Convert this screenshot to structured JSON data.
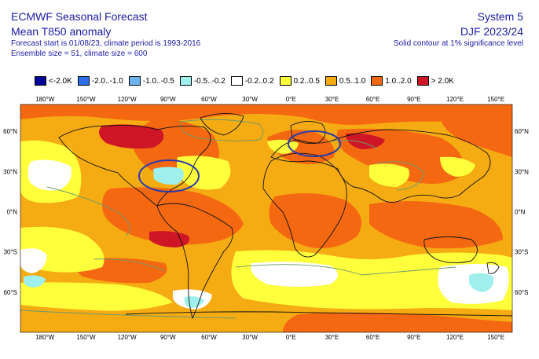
{
  "header": {
    "title": "ECMWF Seasonal Forecast",
    "subtitle": "Mean T850 anomaly",
    "forecast_info": "Forecast start is 01/08/23, climate period is 1993-2016",
    "ensemble_info": "Ensemble size = 51, climate size = 600",
    "system": "System 5",
    "season": "DJF 2023/24",
    "contour_note": "Solid contour at 1% significance level"
  },
  "legend": [
    {
      "label": "<-2.0K",
      "color": "#000099"
    },
    {
      "label": "-2.0..-1.0",
      "color": "#2f6ee6"
    },
    {
      "label": "-1.0..-0.5",
      "color": "#6cb4f0"
    },
    {
      "label": "-0.5..-0.2",
      "color": "#9ff0ec"
    },
    {
      "label": "-0.2..0.2",
      "color": "#ffffff"
    },
    {
      "label": "0.2..0.5",
      "color": "#ffff3c"
    },
    {
      "label": "0.5..1.0",
      "color": "#f5ab12"
    },
    {
      "label": "1.0..2.0",
      "color": "#f46812"
    },
    {
      "label": "> 2.0K",
      "color": "#cf1626"
    }
  ],
  "axes": {
    "lon_labels": [
      "180°W",
      "150°W",
      "120°W",
      "90°W",
      "60°W",
      "30°W",
      "0°E",
      "30°E",
      "60°E",
      "90°E",
      "120°E",
      "150°E"
    ],
    "lat_labels": [
      "60°N",
      "30°N",
      "0°N",
      "30°S",
      "60°S"
    ],
    "lon_values": [
      -180,
      -150,
      -120,
      -90,
      -60,
      -30,
      0,
      30,
      60,
      90,
      120,
      150
    ],
    "lat_values": [
      60,
      30,
      0,
      -30,
      -60
    ]
  },
  "colors": {
    "background_field": "#f5ab12",
    "land_outline": "#111111",
    "significance_contour": "#6d9a6d",
    "highlight_circle": "#2a3aa8"
  },
  "annotations": [
    {
      "name": "north-america-circle",
      "lon": -95,
      "lat": 33
    },
    {
      "name": "scandinavia-circle",
      "lon": 20,
      "lat": 63
    }
  ]
}
